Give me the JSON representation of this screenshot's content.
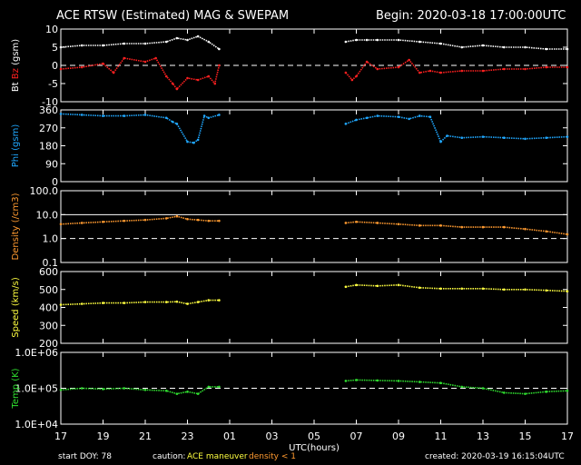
{
  "header": {
    "title": "ACE RTSW (Estimated) MAG & SWEPAM",
    "begin": "Begin: 2020-03-18 17:00:00UTC"
  },
  "footer": {
    "start_doy": "start DOY:  78",
    "caution_label": "caution:",
    "caution_maneuver": "ACE maneuver",
    "caution_density": "density < 1",
    "created": "created: 2020-03-19 16:15:04UTC"
  },
  "x_axis": {
    "label": "UTC(hours)",
    "ticks": [
      "17",
      "19",
      "21",
      "23",
      "01",
      "03",
      "05",
      "07",
      "09",
      "11",
      "13",
      "15",
      "17"
    ]
  },
  "colors": {
    "bt": "#ffffff",
    "bz": "#ff2020",
    "phi": "#20a8ff",
    "density": "#ff9a30",
    "speed": "#ffff40",
    "temp": "#30e030",
    "axes": "#ffffff",
    "background": "#000000"
  },
  "chart_data": [
    {
      "type": "scatter",
      "ylabel": "Bt  Bz  (gsm)",
      "ylabel_parts": [
        "Bt",
        "Bz",
        "(gsm)"
      ],
      "yticks": [
        "10",
        "5",
        "0",
        "-5",
        "-10"
      ],
      "ylim": [
        -10,
        10
      ],
      "reference_lines": [
        0
      ],
      "series": [
        {
          "name": "Bt",
          "color": "#ffffff",
          "x": [
            17,
            18,
            19,
            20,
            21,
            22,
            22.5,
            23,
            23.5,
            24,
            24.5,
            30.5,
            31,
            31.5,
            32,
            33,
            34,
            35,
            36,
            37,
            38,
            39,
            40,
            41
          ],
          "y": [
            5,
            5.5,
            5.5,
            6,
            6,
            6.5,
            7.5,
            7,
            8,
            6.5,
            4.5,
            6.5,
            7,
            7,
            7,
            7,
            6.5,
            6,
            5,
            5.5,
            5,
            5,
            4.5,
            4.5
          ]
        },
        {
          "name": "Bz",
          "color": "#ff2020",
          "x": [
            17,
            18,
            19,
            19.5,
            20,
            21,
            21.5,
            22,
            22.3,
            22.5,
            23,
            23.5,
            24,
            24.3,
            24.5,
            30.5,
            30.8,
            31,
            31.5,
            32,
            33,
            33.5,
            34,
            34.5,
            35,
            36,
            37,
            38,
            39,
            40,
            41
          ],
          "y": [
            -1,
            -0.5,
            0.5,
            -2,
            2,
            1,
            2,
            -3,
            -5,
            -6.5,
            -3.5,
            -4,
            -3,
            -5,
            0,
            -2,
            -4,
            -3,
            1,
            -1,
            -0.5,
            1.5,
            -2,
            -1.5,
            -2,
            -1.5,
            -1.5,
            -1,
            -1,
            -0.5,
            -0.5
          ]
        }
      ]
    },
    {
      "type": "scatter",
      "ylabel": "Phi (gsm)",
      "ylabel_parts": [
        "Phi",
        "(gsm)"
      ],
      "yticks": [
        "360",
        "270",
        "180",
        "90",
        "0"
      ],
      "ylim": [
        0,
        360
      ],
      "series": [
        {
          "name": "Phi",
          "color": "#20a8ff",
          "x": [
            17,
            18,
            19,
            20,
            21,
            22,
            22.3,
            22.5,
            23,
            23.3,
            23.5,
            23.8,
            24,
            24.5,
            30.5,
            31,
            31.5,
            32,
            33,
            33.5,
            34,
            34.5,
            35,
            35.3,
            36,
            37,
            38,
            39,
            40,
            41
          ],
          "y": [
            340,
            335,
            330,
            330,
            335,
            320,
            300,
            290,
            200,
            195,
            210,
            330,
            320,
            335,
            290,
            310,
            320,
            330,
            325,
            315,
            330,
            325,
            200,
            230,
            220,
            225,
            220,
            215,
            220,
            225
          ]
        }
      ]
    },
    {
      "type": "scatter",
      "ylabel": "Density (/cm3)",
      "ylabel_parts": [
        "Density",
        "(/cm3)"
      ],
      "yticks": [
        "100.0",
        "10.0",
        "1.0",
        "0.1"
      ],
      "scale": "log",
      "ylim": [
        0.1,
        100
      ],
      "reference_lines": [
        1,
        10
      ],
      "series": [
        {
          "name": "Density",
          "color": "#ff9a30",
          "x": [
            17,
            18,
            19,
            20,
            21,
            22,
            22.5,
            23,
            23.5,
            24,
            24.5,
            30.5,
            31,
            32,
            33,
            34,
            35,
            36,
            37,
            38,
            39,
            40,
            41
          ],
          "y": [
            4,
            4.5,
            5,
            5.5,
            6,
            7,
            8.5,
            6.5,
            6,
            5.5,
            5.5,
            4.5,
            5,
            4.5,
            4,
            3.5,
            3.5,
            3,
            3,
            3,
            2.5,
            2,
            1.5
          ]
        }
      ]
    },
    {
      "type": "scatter",
      "ylabel": "Speed (km/s)",
      "ylabel_parts": [
        "Speed",
        "(km/s)"
      ],
      "yticks": [
        "600",
        "500",
        "400",
        "300",
        "200"
      ],
      "ylim": [
        200,
        600
      ],
      "series": [
        {
          "name": "Speed",
          "color": "#ffff40",
          "x": [
            17,
            18,
            19,
            20,
            21,
            22,
            22.5,
            23,
            23.5,
            24,
            24.5,
            30.5,
            31,
            32,
            33,
            34,
            35,
            36,
            37,
            38,
            39,
            40,
            41
          ],
          "y": [
            415,
            420,
            425,
            425,
            430,
            430,
            432,
            420,
            430,
            440,
            440,
            515,
            525,
            520,
            525,
            510,
            505,
            505,
            505,
            500,
            500,
            495,
            490
          ]
        }
      ]
    },
    {
      "type": "scatter",
      "ylabel": "Temp (K)",
      "ylabel_parts": [
        "Temp",
        "(K)"
      ],
      "yticks": [
        "1.0E+06",
        "1.0E+05",
        "1.0E+04"
      ],
      "scale": "log",
      "ylim": [
        10000,
        1000000
      ],
      "reference_lines": [
        100000
      ],
      "series": [
        {
          "name": "Temp",
          "color": "#30e030",
          "x": [
            17,
            18,
            19,
            20,
            21,
            22,
            22.5,
            23,
            23.5,
            24,
            24.5,
            30.5,
            31,
            32,
            33,
            34,
            35,
            36,
            37,
            38,
            39,
            40,
            41
          ],
          "y": [
            90000,
            100000,
            95000,
            100000,
            90000,
            85000,
            70000,
            80000,
            70000,
            110000,
            110000,
            160000,
            170000,
            165000,
            160000,
            150000,
            140000,
            110000,
            100000,
            75000,
            70000,
            80000,
            85000
          ]
        }
      ]
    }
  ]
}
